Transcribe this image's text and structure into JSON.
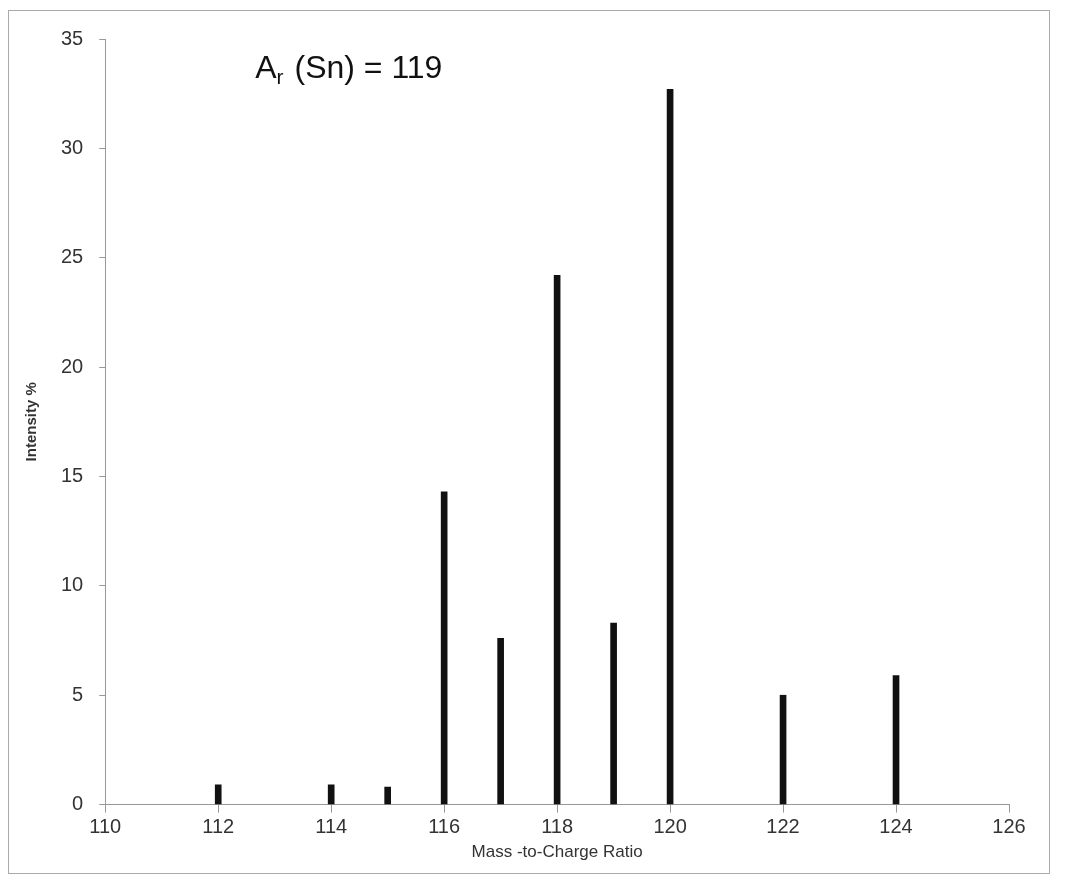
{
  "chart_data": {
    "type": "bar",
    "xlabel": "Mass -to-Charge Ratio",
    "ylabel": "Intensity %",
    "x": [
      112,
      114,
      115,
      116,
      117,
      118,
      119,
      120,
      122,
      124
    ],
    "values": [
      0.9,
      0.9,
      0.8,
      14.3,
      7.6,
      24.2,
      8.3,
      32.7,
      5.0,
      5.9
    ],
    "color": "#111111",
    "xlim": [
      110,
      126
    ],
    "xticks": [
      110,
      112,
      114,
      116,
      118,
      120,
      122,
      124,
      126
    ],
    "ylim": [
      0,
      35
    ],
    "yticks": [
      0,
      5,
      10,
      15,
      20,
      25,
      30,
      35
    ],
    "grid": false,
    "legend": false,
    "annotations": [
      "A$_{r}$ (Sn) = 119"
    ]
  }
}
